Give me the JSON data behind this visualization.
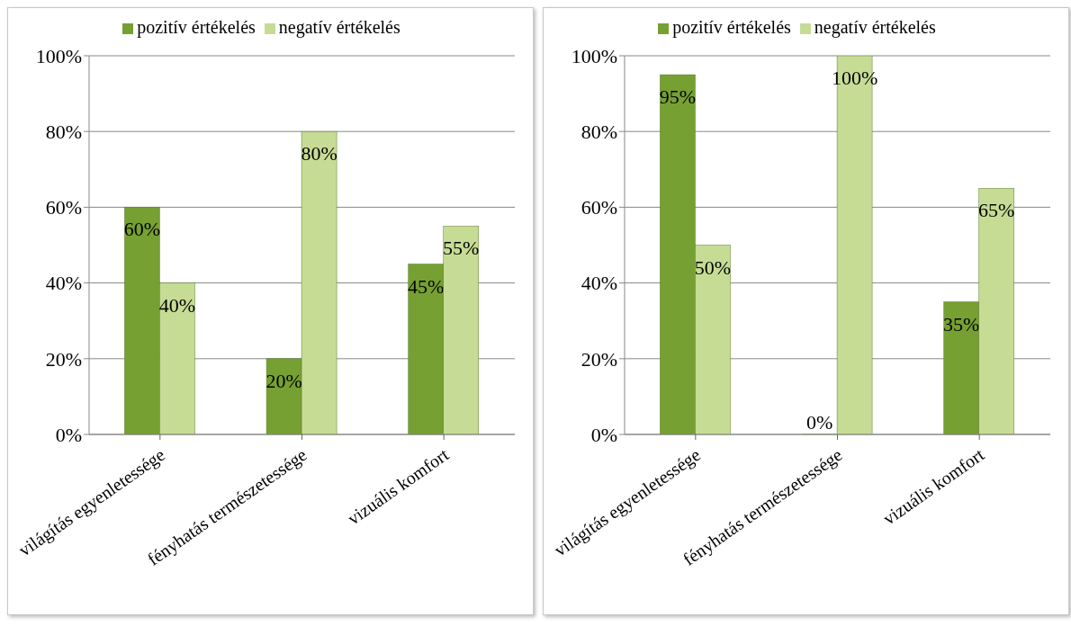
{
  "chart_data": [
    {
      "type": "bar",
      "categories": [
        "világítás egyenletessége",
        "fényhatás természetessége",
        "vizuális komfort"
      ],
      "series": [
        {
          "name": "pozitív értékelés",
          "color": "#76a032",
          "values": [
            60,
            20,
            45
          ],
          "value_labels": [
            "60%",
            "20%",
            "45%"
          ]
        },
        {
          "name": "negatív értékelés",
          "color": "#c6dc95",
          "values": [
            40,
            80,
            55
          ],
          "value_labels": [
            "40%",
            "80%",
            "55%"
          ]
        }
      ],
      "ylim": [
        0,
        100
      ],
      "yticks": [
        {
          "value": 0,
          "label": "0%"
        },
        {
          "value": 20,
          "label": "20%"
        },
        {
          "value": 40,
          "label": "40%"
        },
        {
          "value": 60,
          "label": "60%"
        },
        {
          "value": 80,
          "label": "80%"
        },
        {
          "value": 100,
          "label": "100%"
        }
      ],
      "grid": "y",
      "legend": "top"
    },
    {
      "type": "bar",
      "categories": [
        "világítás egyenletessége",
        "fényhatás természetessége",
        "vizuális komfort"
      ],
      "series": [
        {
          "name": "pozitív értékelés",
          "color": "#76a032",
          "values": [
            95,
            0,
            35
          ],
          "value_labels": [
            "95%",
            "0%",
            "35%"
          ]
        },
        {
          "name": "negatív értékelés",
          "color": "#c6dc95",
          "values": [
            50,
            100,
            65
          ],
          "value_labels": [
            "50%",
            "100%",
            "65%"
          ]
        }
      ],
      "ylim": [
        0,
        100
      ],
      "yticks": [
        {
          "value": 0,
          "label": "0%"
        },
        {
          "value": 20,
          "label": "20%"
        },
        {
          "value": 40,
          "label": "40%"
        },
        {
          "value": 60,
          "label": "60%"
        },
        {
          "value": 80,
          "label": "80%"
        },
        {
          "value": 100,
          "label": "100%"
        }
      ],
      "grid": "y",
      "legend": "top"
    }
  ]
}
